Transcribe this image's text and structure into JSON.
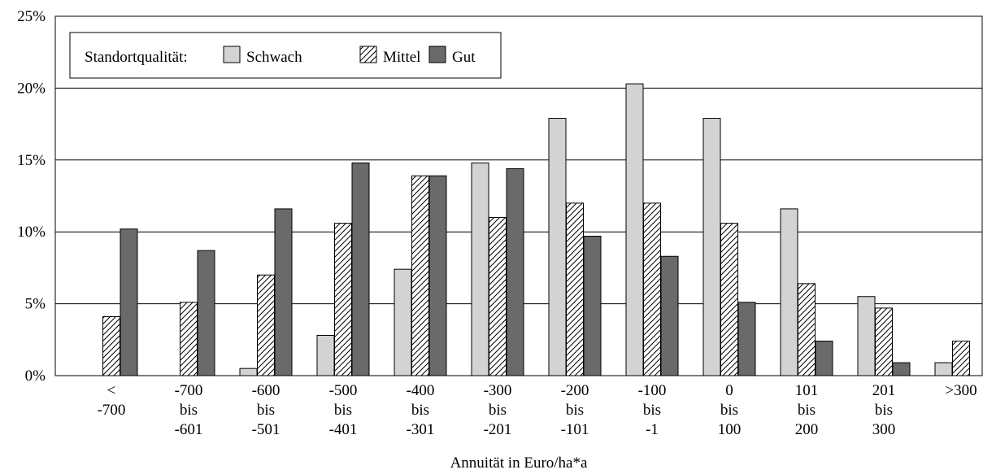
{
  "chart_data": {
    "type": "bar",
    "xlabel": "Annuität in Euro/ha*a",
    "ylabel": "",
    "ylim": [
      0,
      25
    ],
    "yticks": [
      0,
      5,
      10,
      15,
      20,
      25
    ],
    "ytick_labels": [
      "0%",
      "5%",
      "10%",
      "15%",
      "20%",
      "25%"
    ],
    "grid": true,
    "legend": {
      "placement": "top-left",
      "title": "Standortqualität:"
    },
    "categories": [
      [
        "<",
        "-700"
      ],
      [
        "-700",
        "bis",
        "-601"
      ],
      [
        "-600",
        "bis",
        "-501"
      ],
      [
        "-500",
        "bis",
        "-401"
      ],
      [
        "-400",
        "bis",
        "-301"
      ],
      [
        "-300",
        "bis",
        "-201"
      ],
      [
        "-200",
        "bis",
        "-101"
      ],
      [
        "-100",
        "bis",
        "-1"
      ],
      [
        "0",
        "bis",
        "100"
      ],
      [
        "101",
        "bis",
        "200"
      ],
      [
        "201",
        "bis",
        "300"
      ],
      [
        ">300"
      ]
    ],
    "series": [
      {
        "name": "Schwach",
        "fill": "#d3d3d3",
        "pattern": "solid",
        "values": [
          0,
          0,
          0.5,
          2.8,
          7.4,
          14.8,
          17.9,
          20.3,
          17.9,
          11.6,
          5.5,
          0.9
        ]
      },
      {
        "name": "Mittel",
        "fill": "#ffffff",
        "pattern": "hatch",
        "values": [
          4.1,
          5.1,
          7.0,
          10.6,
          13.9,
          11.0,
          12.0,
          12.0,
          10.6,
          6.4,
          4.7,
          2.4
        ]
      },
      {
        "name": "Gut",
        "fill": "#6a6a6a",
        "pattern": "solid",
        "values": [
          10.2,
          8.7,
          11.6,
          14.8,
          13.9,
          14.4,
          9.7,
          8.3,
          5.1,
          2.4,
          0.9,
          null
        ]
      }
    ]
  }
}
